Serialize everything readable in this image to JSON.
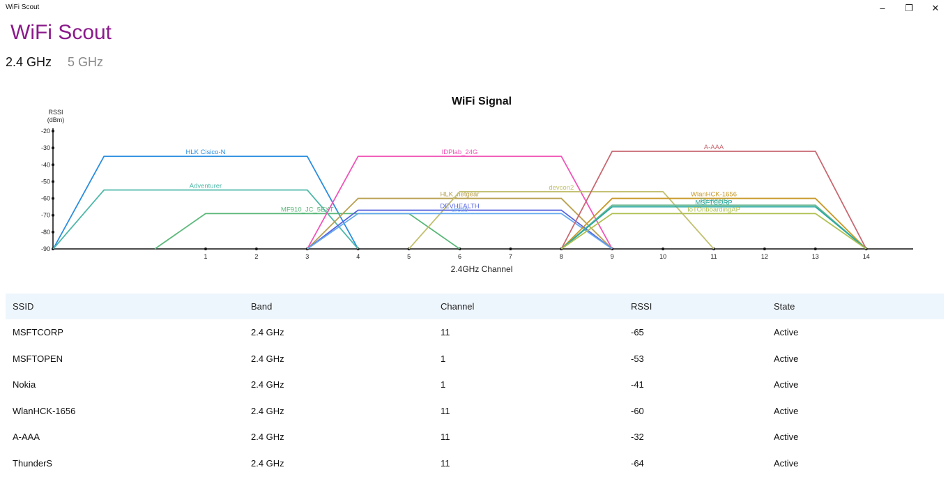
{
  "window": {
    "title": "WiFi Scout",
    "controls": {
      "minimize": "–",
      "restore": "❐",
      "close": "✕"
    }
  },
  "app": {
    "title": "WiFi Scout"
  },
  "tabs": [
    {
      "label": "2.4 GHz",
      "selected": true
    },
    {
      "label": "5 GHz",
      "selected": false
    }
  ],
  "chart_data": {
    "type": "line",
    "title": "WiFi Signal",
    "ylabel_line1": "RSSI",
    "ylabel_line2": "(dBm)",
    "xlabel": "2.4GHz Channel",
    "ylim": [
      -90,
      -20
    ],
    "yticks": [
      "-20",
      "-30",
      "-40",
      "-50",
      "-60",
      "-70",
      "-80",
      "-90"
    ],
    "xticks": [
      "1",
      "2",
      "3",
      "4",
      "5",
      "6",
      "7",
      "8",
      "9",
      "10",
      "11",
      "12",
      "13",
      "14"
    ],
    "grid": false,
    "legend": "none",
    "series": [
      {
        "name": "HLK Cisico-N",
        "channel": 1,
        "rssi": -35,
        "color": "#2a8ddf"
      },
      {
        "name": "Adventurer",
        "channel": 1,
        "rssi": -55,
        "color": "#4fb8a8"
      },
      {
        "name": "MF910_JC_5EXT",
        "channel": 3,
        "rssi": -69,
        "color": "#5bb87a"
      },
      {
        "name": "IDPlab_24G",
        "channel": 6,
        "rssi": -35,
        "color": "#f055b8"
      },
      {
        "name": "HLK_netgear",
        "channel": 6,
        "rssi": -60,
        "color": "#b8a050"
      },
      {
        "name": "devcon2",
        "channel": 8,
        "rssi": -56,
        "color": "#c2c070"
      },
      {
        "name": "DEVHEALTH",
        "channel": 6,
        "rssi": -67,
        "color": "#5563e0"
      },
      {
        "name": "urcab",
        "channel": 6,
        "rssi": -69,
        "color": "#66aaf0"
      },
      {
        "name": "A-AAA",
        "channel": 11,
        "rssi": -32,
        "color": "#c86870"
      },
      {
        "name": "WlanHCK-1656",
        "channel": 11,
        "rssi": -60,
        "color": "#c89828"
      },
      {
        "name": "ThunderS",
        "channel": 11,
        "rssi": -64,
        "color": "#6ab890"
      },
      {
        "name": "MSFTCORP",
        "channel": 11,
        "rssi": -65,
        "color": "#2aa8a0"
      },
      {
        "name": "IoTOnboardingAP",
        "channel": 11,
        "rssi": -69,
        "color": "#b0c050"
      }
    ]
  },
  "table": {
    "headers": [
      "SSID",
      "Band",
      "Channel",
      "RSSI",
      "State"
    ],
    "rows": [
      [
        "MSFTCORP",
        "2.4 GHz",
        "11",
        "-65",
        "Active"
      ],
      [
        "MSFTOPEN",
        "2.4 GHz",
        "1",
        "-53",
        "Active"
      ],
      [
        "Nokia",
        "2.4 GHz",
        "1",
        "-41",
        "Active"
      ],
      [
        "WlanHCK-1656",
        "2.4 GHz",
        "11",
        "-60",
        "Active"
      ],
      [
        "A-AAA",
        "2.4 GHz",
        "11",
        "-32",
        "Active"
      ],
      [
        "ThunderS",
        "2.4 GHz",
        "11",
        "-64",
        "Active"
      ]
    ]
  }
}
